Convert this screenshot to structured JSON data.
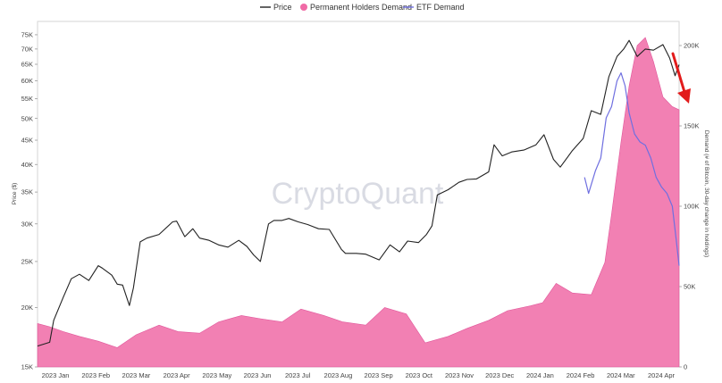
{
  "chart_data": {
    "type": "line",
    "title": "",
    "watermark": "CryptoQuant",
    "legend": {
      "placement": "top-center",
      "entries": [
        "Price",
        "Permanent Holders Demand",
        "ETF Demand"
      ]
    },
    "x_ticks": [
      "2023 Jan",
      "2023 Feb",
      "2023 Mar",
      "2023 Apr",
      "2023 May",
      "2023 Jun",
      "2023 Jul",
      "2023 Aug",
      "2023 Sep",
      "2023 Oct",
      "2023 Nov",
      "2023 Dec",
      "2024 Jan",
      "2024 Feb",
      "2024 Mar",
      "2024 Apr"
    ],
    "y_left": {
      "label": "Price ($)",
      "scale": "log",
      "range": [
        15000,
        80000
      ],
      "ticks": [
        15000,
        20000,
        25000,
        30000,
        35000,
        40000,
        45000,
        50000,
        55000,
        60000,
        65000,
        70000,
        75000
      ],
      "tick_labels": [
        "15K",
        "20K",
        "25K",
        "30K",
        "35K",
        "40K",
        "45K",
        "50K",
        "55K",
        "60K",
        "65K",
        "70K",
        "75K"
      ]
    },
    "y_right": {
      "label": "Demand (# of Bitcoin, 30-day change in holdings)",
      "scale": "linear",
      "range": [
        0,
        215000
      ],
      "ticks": [
        0,
        50000,
        100000,
        150000,
        200000
      ],
      "tick_labels": [
        "0",
        "50K",
        "100K",
        "150K",
        "200K"
      ]
    },
    "grid": false,
    "colors": {
      "price": "#222222",
      "permanent_holders": "#f06aa6",
      "etf": "#6f6fe0",
      "annotation_arrow": "#e21b1b"
    },
    "annotation": "red arrow pointing down near the right edge",
    "series": [
      {
        "name": "Price",
        "axis": "left",
        "x": [
          "2023-01-01",
          "2023-01-10",
          "2023-01-13",
          "2023-01-20",
          "2023-01-26",
          "2023-02-01",
          "2023-02-08",
          "2023-02-15",
          "2023-02-18",
          "2023-02-25",
          "2023-03-01",
          "2023-03-05",
          "2023-03-10",
          "2023-03-13",
          "2023-03-18",
          "2023-03-23",
          "2023-04-01",
          "2023-04-11",
          "2023-04-14",
          "2023-04-20",
          "2023-04-26",
          "2023-05-01",
          "2023-05-08",
          "2023-05-15",
          "2023-05-22",
          "2023-05-30",
          "2023-06-05",
          "2023-06-10",
          "2023-06-15",
          "2023-06-21",
          "2023-06-25",
          "2023-07-01",
          "2023-07-06",
          "2023-07-13",
          "2023-07-20",
          "2023-07-28",
          "2023-08-05",
          "2023-08-14",
          "2023-08-17",
          "2023-08-25",
          "2023-09-01",
          "2023-09-11",
          "2023-09-19",
          "2023-09-26",
          "2023-10-02",
          "2023-10-10",
          "2023-10-16",
          "2023-10-20",
          "2023-10-24",
          "2023-11-01",
          "2023-11-09",
          "2023-11-15",
          "2023-11-22",
          "2023-12-01",
          "2023-12-05",
          "2023-12-11",
          "2023-12-18",
          "2023-12-27",
          "2024-01-05",
          "2024-01-11",
          "2024-01-18",
          "2024-01-23",
          "2024-02-01",
          "2024-02-09",
          "2024-02-15",
          "2024-02-22",
          "2024-02-28",
          "2024-03-05",
          "2024-03-10",
          "2024-03-14",
          "2024-03-20",
          "2024-03-26",
          "2024-04-01",
          "2024-04-08",
          "2024-04-13",
          "2024-04-17",
          "2024-04-20"
        ],
        "values": [
          16600,
          16900,
          18800,
          21000,
          23000,
          23500,
          22800,
          24500,
          24200,
          23400,
          22400,
          22300,
          20200,
          22000,
          27500,
          28000,
          28500,
          30300,
          30400,
          28200,
          29300,
          28000,
          27700,
          27100,
          26800,
          27700,
          26900,
          25800,
          25000,
          30000,
          30500,
          30500,
          30800,
          30300,
          29900,
          29300,
          29200,
          26500,
          26000,
          26000,
          25900,
          25200,
          27100,
          26200,
          27600,
          27400,
          28500,
          29700,
          34500,
          35400,
          36700,
          37200,
          37300,
          38600,
          44000,
          41700,
          42500,
          42900,
          44000,
          46200,
          41000,
          39500,
          42800,
          45400,
          51900,
          51000,
          61200,
          67500,
          70000,
          73000,
          67500,
          70000,
          69600,
          71500,
          67000,
          61500,
          64900
        ]
      },
      {
        "name": "Permanent Holders Demand",
        "axis": "right",
        "x": [
          "2023-01-01",
          "2023-01-10",
          "2023-01-20",
          "2023-02-01",
          "2023-02-15",
          "2023-03-01",
          "2023-03-15",
          "2023-04-01",
          "2023-04-15",
          "2023-05-01",
          "2023-05-15",
          "2023-06-01",
          "2023-06-15",
          "2023-07-01",
          "2023-07-15",
          "2023-08-01",
          "2023-08-15",
          "2023-09-01",
          "2023-09-15",
          "2023-10-01",
          "2023-10-15",
          "2023-11-01",
          "2023-11-15",
          "2023-12-01",
          "2023-12-15",
          "2024-01-01",
          "2024-01-10",
          "2024-01-20",
          "2024-02-01",
          "2024-02-15",
          "2024-02-25",
          "2024-03-01",
          "2024-03-08",
          "2024-03-14",
          "2024-03-20",
          "2024-03-26",
          "2024-04-01",
          "2024-04-08",
          "2024-04-15",
          "2024-04-20"
        ],
        "values": [
          27000,
          25000,
          22000,
          19000,
          16000,
          12000,
          20000,
          26000,
          22000,
          21000,
          28000,
          32000,
          30000,
          28000,
          36000,
          32000,
          28000,
          26000,
          37000,
          33000,
          15000,
          19000,
          24000,
          29000,
          35000,
          38000,
          40000,
          52000,
          46000,
          45000,
          65000,
          95000,
          140000,
          175000,
          200000,
          205000,
          190000,
          168000,
          162000,
          160000
        ]
      },
      {
        "name": "ETF Demand",
        "axis": "right",
        "x": [
          "2024-02-10",
          "2024-02-13",
          "2024-02-18",
          "2024-02-22",
          "2024-02-26",
          "2024-03-01",
          "2024-03-05",
          "2024-03-08",
          "2024-03-11",
          "2024-03-14",
          "2024-03-18",
          "2024-03-22",
          "2024-03-26",
          "2024-03-30",
          "2024-04-03",
          "2024-04-07",
          "2024-04-11",
          "2024-04-15",
          "2024-04-18",
          "2024-04-20"
        ],
        "values": [
          118000,
          108000,
          122000,
          130000,
          155000,
          162000,
          178000,
          183000,
          175000,
          158000,
          145000,
          140000,
          138000,
          130000,
          118000,
          112000,
          108000,
          100000,
          78000,
          63000
        ]
      }
    ]
  }
}
